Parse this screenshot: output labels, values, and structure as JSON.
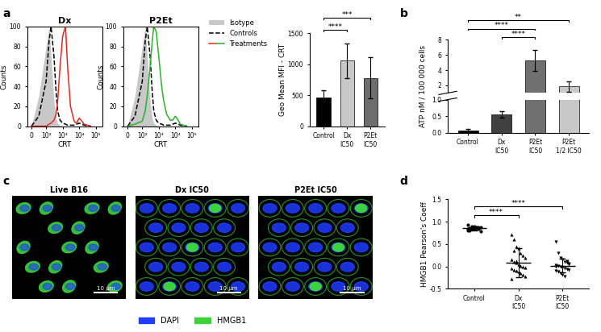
{
  "panel_labels": [
    "a",
    "b",
    "c",
    "d"
  ],
  "chart_data": [
    {
      "type": "line",
      "title": "Dx",
      "x_label": "CRT",
      "y_label": "Counts",
      "log": "x",
      "legend": "upper left",
      "x": [
        0,
        50,
        100,
        150,
        200,
        300,
        400,
        500,
        700,
        1000,
        1500,
        2000,
        3000,
        5000,
        7000,
        10000,
        15000,
        20000,
        50000
      ],
      "xlim": [
        -30,
        250000
      ],
      "xticks": [
        0,
        {
          "value": 100,
          "label": "10²"
        },
        {
          "value": 1000,
          "label": "10³"
        },
        {
          "value": 10000,
          "label": "10⁴"
        },
        {
          "value": 100000,
          "label": "10⁵"
        }
      ],
      "ylim": [
        0,
        100
      ],
      "yticks": [
        0,
        20,
        40,
        60,
        80,
        100
      ],
      "series": [
        {
          "name": "Isotype",
          "type": "area",
          "color": "#c8c8c8",
          "values": [
            0,
            30,
            80,
            100,
            70,
            25,
            8,
            3,
            1,
            0,
            0,
            0,
            0,
            0,
            0,
            0,
            0,
            0,
            0
          ]
        },
        {
          "name": "Controls",
          "type": "line",
          "line_style": "dashed",
          "color": "#000000",
          "values": [
            0,
            10,
            45,
            85,
            100,
            70,
            35,
            15,
            6,
            3,
            2,
            1,
            1,
            1,
            2,
            3,
            2,
            1,
            0
          ]
        },
        {
          "name": "Treatments",
          "type": "line",
          "line_style": "solid",
          "color": "#e8281e",
          "values": [
            0,
            0,
            0,
            2,
            3,
            6,
            12,
            25,
            60,
            90,
            100,
            60,
            20,
            5,
            3,
            8,
            5,
            2,
            0
          ]
        }
      ]
    },
    {
      "type": "line",
      "title": "P2Et",
      "x_label": "CRT",
      "y_label": "Counts",
      "log": "x",
      "x": [
        0,
        50,
        100,
        150,
        200,
        300,
        400,
        500,
        700,
        1000,
        1500,
        2000,
        3000,
        5000,
        7000,
        10000,
        15000,
        20000,
        50000
      ],
      "xlim": [
        -30,
        250000
      ],
      "xticks": [
        0,
        {
          "value": 100,
          "label": "10²"
        },
        {
          "value": 1000,
          "label": "10³"
        },
        {
          "value": 10000,
          "label": "10⁴"
        },
        {
          "value": 100000,
          "label": "10⁵"
        }
      ],
      "ylim": [
        0,
        100
      ],
      "yticks": [
        0,
        20,
        40,
        60,
        80,
        100
      ],
      "series": [
        {
          "name": "Isotype",
          "type": "area",
          "color": "#c8c8c8",
          "values": [
            0,
            30,
            80,
            100,
            70,
            25,
            8,
            3,
            1,
            0,
            0,
            0,
            0,
            0,
            0,
            0,
            0,
            0,
            0
          ]
        },
        {
          "name": "Controls",
          "type": "line",
          "line_style": "dashed",
          "color": "#000000",
          "values": [
            0,
            10,
            45,
            85,
            100,
            70,
            35,
            15,
            6,
            3,
            2,
            1,
            1,
            1,
            2,
            3,
            2,
            1,
            0
          ]
        },
        {
          "name": "Treatments",
          "type": "line",
          "line_style": "solid",
          "color": "#2db02d",
          "values": [
            0,
            2,
            5,
            15,
            30,
            60,
            85,
            100,
            95,
            70,
            40,
            25,
            12,
            6,
            6,
            10,
            6,
            2,
            0
          ]
        }
      ]
    },
    {
      "type": "bar",
      "y_label": "Geo Mean MFI - CRT",
      "categories": [
        "Control",
        "Dx\nIC50",
        "P2Et\nIC50"
      ],
      "values": [
        460,
        1060,
        780
      ],
      "errors": [
        120,
        280,
        330
      ],
      "colors": [
        "#000000",
        "#c8c8c8",
        "#6e6e6e"
      ],
      "ylim": [
        0,
        1500
      ],
      "yticks": [
        0,
        500,
        1000,
        1500
      ],
      "significance": [
        {
          "pair": [
            0,
            1
          ],
          "label": "****"
        },
        {
          "pair": [
            0,
            2
          ],
          "label": "***"
        }
      ]
    },
    {
      "type": "bar",
      "y_label": "ATP nM / 100 000 cells",
      "categories": [
        "Control",
        "Dx\nIC50",
        "P2Et\nIC50",
        "P2Et\n1/2 IC50"
      ],
      "values": [
        0.08,
        0.55,
        5.3,
        1.85
      ],
      "errors": [
        0.03,
        0.1,
        1.4,
        0.7
      ],
      "colors": [
        "#000000",
        "#404040",
        "#707070",
        "#c8c8c8"
      ],
      "segments": [
        {
          "ylim": [
            1,
            8
          ],
          "yticks": [
            2,
            4,
            6,
            8
          ]
        },
        {
          "ylim": [
            0,
            1
          ],
          "yticks": [
            {
              "value": 0,
              "label": "0.0"
            },
            {
              "value": 0.5,
              "label": "0.5"
            },
            {
              "value": 1,
              "label": "1.0"
            }
          ]
        }
      ],
      "significance": [
        {
          "pair": [
            1,
            2
          ],
          "label": "****"
        },
        {
          "pair": [
            0,
            2
          ],
          "label": "****"
        },
        {
          "pair": [
            0,
            3
          ],
          "label": "**"
        }
      ]
    },
    {
      "type": "scatter",
      "y_label": "HMGB1 Pearson's Coeff",
      "categories": [
        "Control",
        "Dx\nIC50",
        "P2Et\nIC50"
      ],
      "markers": [
        "circle",
        "triangle",
        "triangle_down"
      ],
      "color": "#000000",
      "points": [
        [
          0.8,
          0.82,
          0.84,
          0.85,
          0.86,
          0.87,
          0.88,
          0.83,
          0.81,
          0.89,
          0.9,
          0.86,
          0.84,
          0.79,
          0.92,
          0.85,
          0.87,
          0.83,
          0.88,
          0.86
        ],
        [
          0.72,
          0.6,
          0.45,
          0.4,
          0.3,
          0.25,
          0.2,
          0.15,
          0.1,
          0.08,
          0.05,
          0.02,
          0.0,
          -0.02,
          -0.05,
          -0.08,
          -0.1,
          -0.12,
          -0.15,
          -0.18,
          -0.22,
          -0.28,
          0.35,
          0.12
        ],
        [
          0.55,
          0.3,
          0.2,
          0.15,
          0.1,
          0.08,
          0.05,
          0.03,
          0.02,
          0.0,
          -0.02,
          -0.04,
          -0.06,
          -0.08,
          -0.1,
          -0.12,
          -0.15,
          -0.18,
          -0.22,
          0.12,
          0.06,
          -0.01
        ]
      ],
      "means": [
        0.85,
        0.08,
        0.02
      ],
      "errors": [
        0.04,
        0.32,
        0.15
      ],
      "ylim": [
        -0.5,
        1.5
      ],
      "yticks": [
        {
          "value": -0.5,
          "label": "-0.5"
        },
        {
          "value": 0,
          "label": "0.0"
        },
        {
          "value": 0.5,
          "label": "0.5"
        },
        {
          "value": 1,
          "label": "1.0"
        },
        {
          "value": 1.5,
          "label": "1.5"
        }
      ],
      "significance": [
        {
          "pair": [
            0,
            1
          ],
          "label": "****"
        },
        {
          "pair": [
            0,
            2
          ],
          "label": "****"
        }
      ]
    }
  ],
  "images": {
    "titles": [
      "Live B16",
      "Dx IC50",
      "P2Et IC50"
    ],
    "scale_bar": "10 μm",
    "channels": [
      {
        "name": "DAPI",
        "color": "#1e3cff"
      },
      {
        "name": "HMGB1",
        "color": "#3cd23c"
      }
    ]
  }
}
